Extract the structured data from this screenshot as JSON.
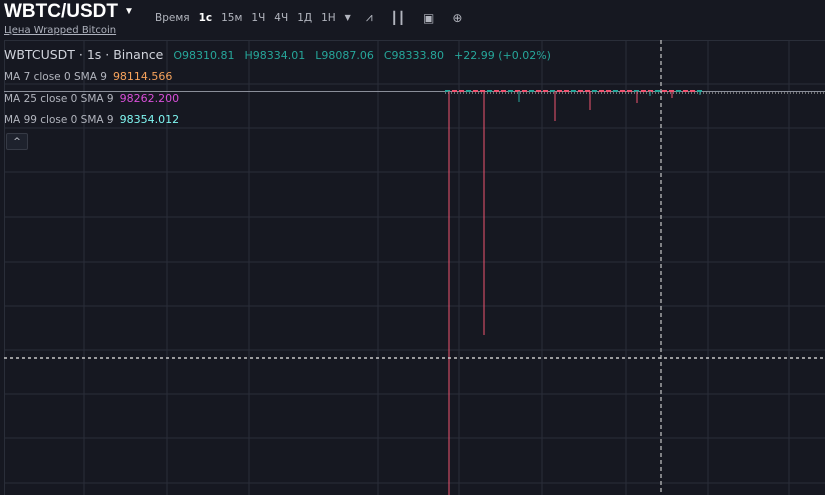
{
  "header": {
    "title": "WBTC/USDT",
    "subtitle": "Цена Wrapped Bitcoin"
  },
  "toolbar": {
    "time_label": "Время",
    "intervals": [
      "1с",
      "15м",
      "1Ч",
      "4Ч",
      "1Д",
      "1Н"
    ],
    "active_interval": "1с",
    "icons": [
      "indicator-icon",
      "candles-icon",
      "camera-icon",
      "plus-circle-icon"
    ]
  },
  "legend": {
    "symbol": "WBTCUSDT · 1s · Binance",
    "open": "O98310.81",
    "high": "H98334.01",
    "low": "L98087.06",
    "close": "C98333.80",
    "change": "+22.99 (+0.02%)"
  },
  "ma": [
    {
      "label": "MA 7 close 0 SMA 9",
      "value": "98114.566",
      "color": "#f7a35c"
    },
    {
      "label": "MA 25 close 0 SMA 9",
      "value": "98262.200",
      "color": "#d84fd8"
    },
    {
      "label": "MA 99 close 0 SMA 9",
      "value": "98354.012",
      "color": "#7ff5f0"
    }
  ],
  "colors": {
    "up": "#26a69a",
    "down": "#ef5370",
    "bg": "#161821",
    "grid": "#2a2e39"
  }
}
